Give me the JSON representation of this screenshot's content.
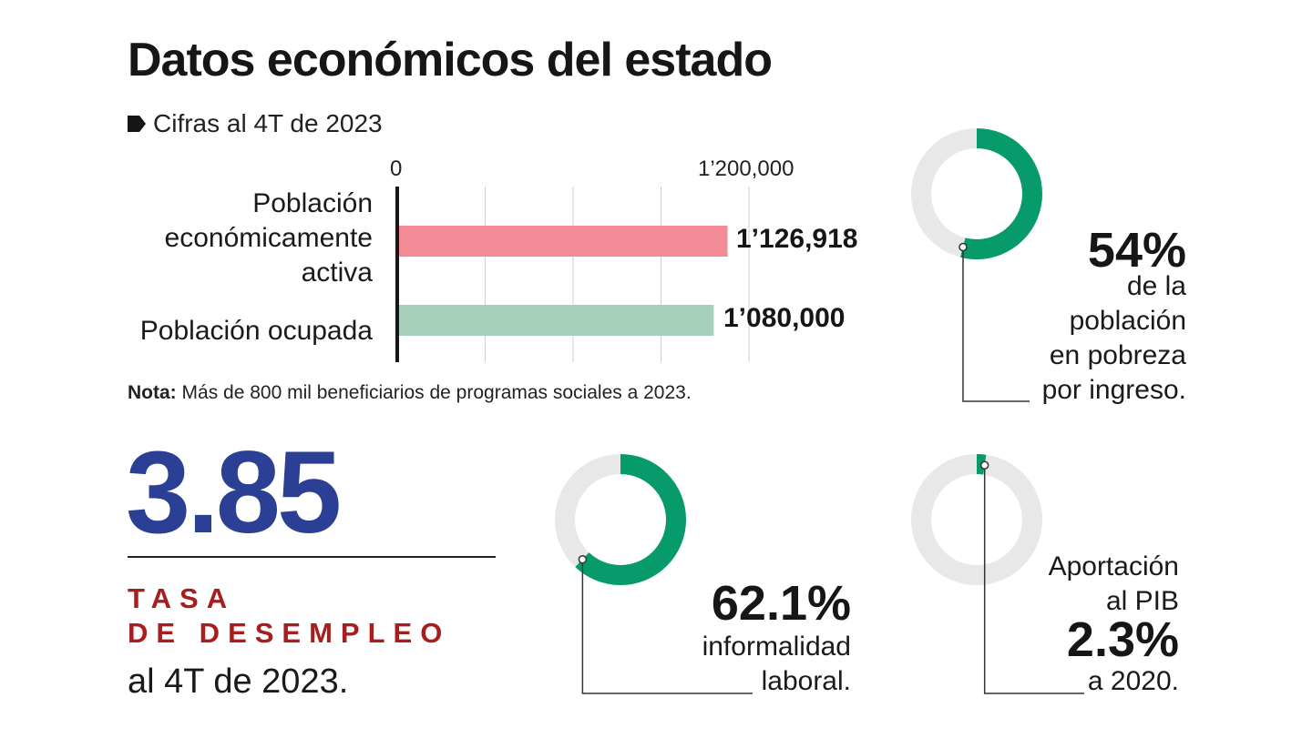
{
  "title": "Datos económicos del estado",
  "subtitle": "Cifras al 4T de 2023",
  "colors": {
    "bar_pea": "#f28b95",
    "bar_ocupada": "#a8cfbc",
    "donut_green": "#079a6b",
    "donut_bg": "#e8e8e8",
    "rate_blue": "#2b3f94",
    "label_red": "#a81d1d"
  },
  "chart_data": [
    {
      "type": "bar",
      "orientation": "horizontal",
      "categories": [
        "Población económicamente activa",
        "Población ocupada"
      ],
      "values": [
        1126918,
        1080000
      ],
      "value_labels": [
        "1’126,918",
        "1’080,000"
      ],
      "xlim": [
        0,
        1200000
      ],
      "tick_labels": [
        "0",
        "1’200,000"
      ],
      "grid": true,
      "note_label": "Nota:",
      "note_text": "Más de 800 mil beneficiarios de programas sociales a 2023."
    },
    {
      "type": "pie",
      "style": "donut",
      "value_pct": 54,
      "label": "54%",
      "text_lines": [
        "de la",
        "población",
        "en pobreza",
        "por ingreso."
      ]
    },
    {
      "type": "pie",
      "style": "donut",
      "value_pct": 62.1,
      "label": "62.1%",
      "text_lines": [
        "informalidad",
        "laboral."
      ]
    },
    {
      "type": "pie",
      "style": "donut",
      "value_pct": 2.3,
      "label": "2.3%",
      "text_top": [
        "Aportación",
        "al PIB"
      ],
      "text_bottom": "a 2020."
    }
  ],
  "unemployment": {
    "value": "3.85",
    "label_line1": "TASA",
    "label_line2": "DE DESEMPLEO",
    "sub": "al 4T de 2023."
  }
}
